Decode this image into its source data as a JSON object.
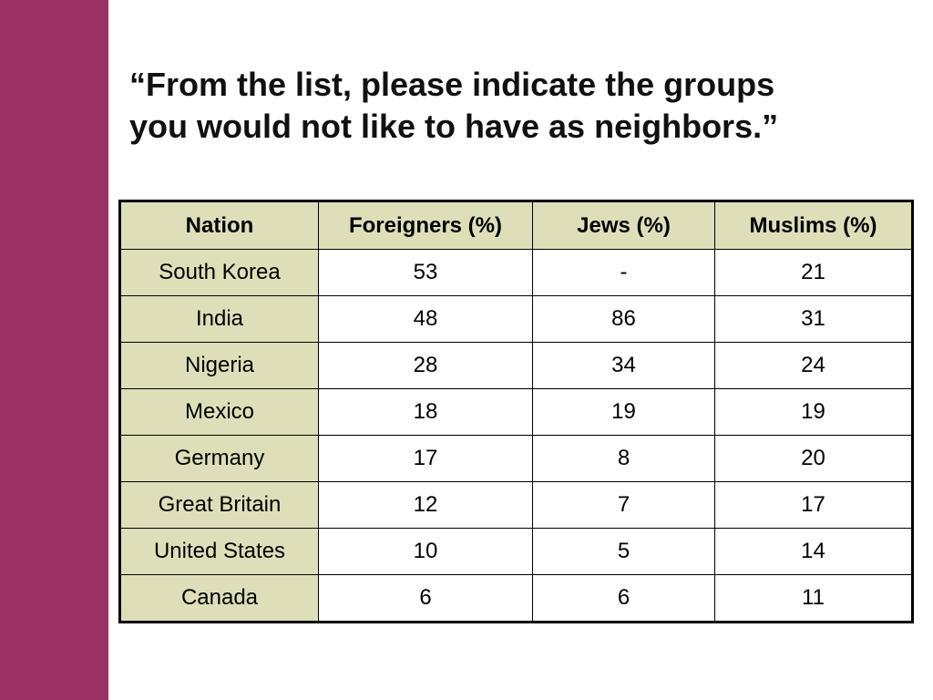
{
  "slide": {
    "title_lines": [
      "“From the list, please indicate the groups",
      "you would not like to have as neighbors.”"
    ],
    "accent_color": "#9b3064",
    "header_fill": "#dedfb9"
  },
  "table": {
    "headers": [
      "Nation",
      "Foreigners (%)",
      "Jews (%)",
      "Muslims (%)"
    ],
    "rows": [
      [
        "South Korea",
        "53",
        "-",
        "21"
      ],
      [
        "India",
        "48",
        "86",
        "31"
      ],
      [
        "Nigeria",
        "28",
        "34",
        "24"
      ],
      [
        "Mexico",
        "18",
        "19",
        "19"
      ],
      [
        "Germany",
        "17",
        "8",
        "20"
      ],
      [
        "Great Britain",
        "12",
        "7",
        "17"
      ],
      [
        "United States",
        "10",
        "5",
        "14"
      ],
      [
        "Canada",
        "6",
        "6",
        "11"
      ]
    ]
  }
}
